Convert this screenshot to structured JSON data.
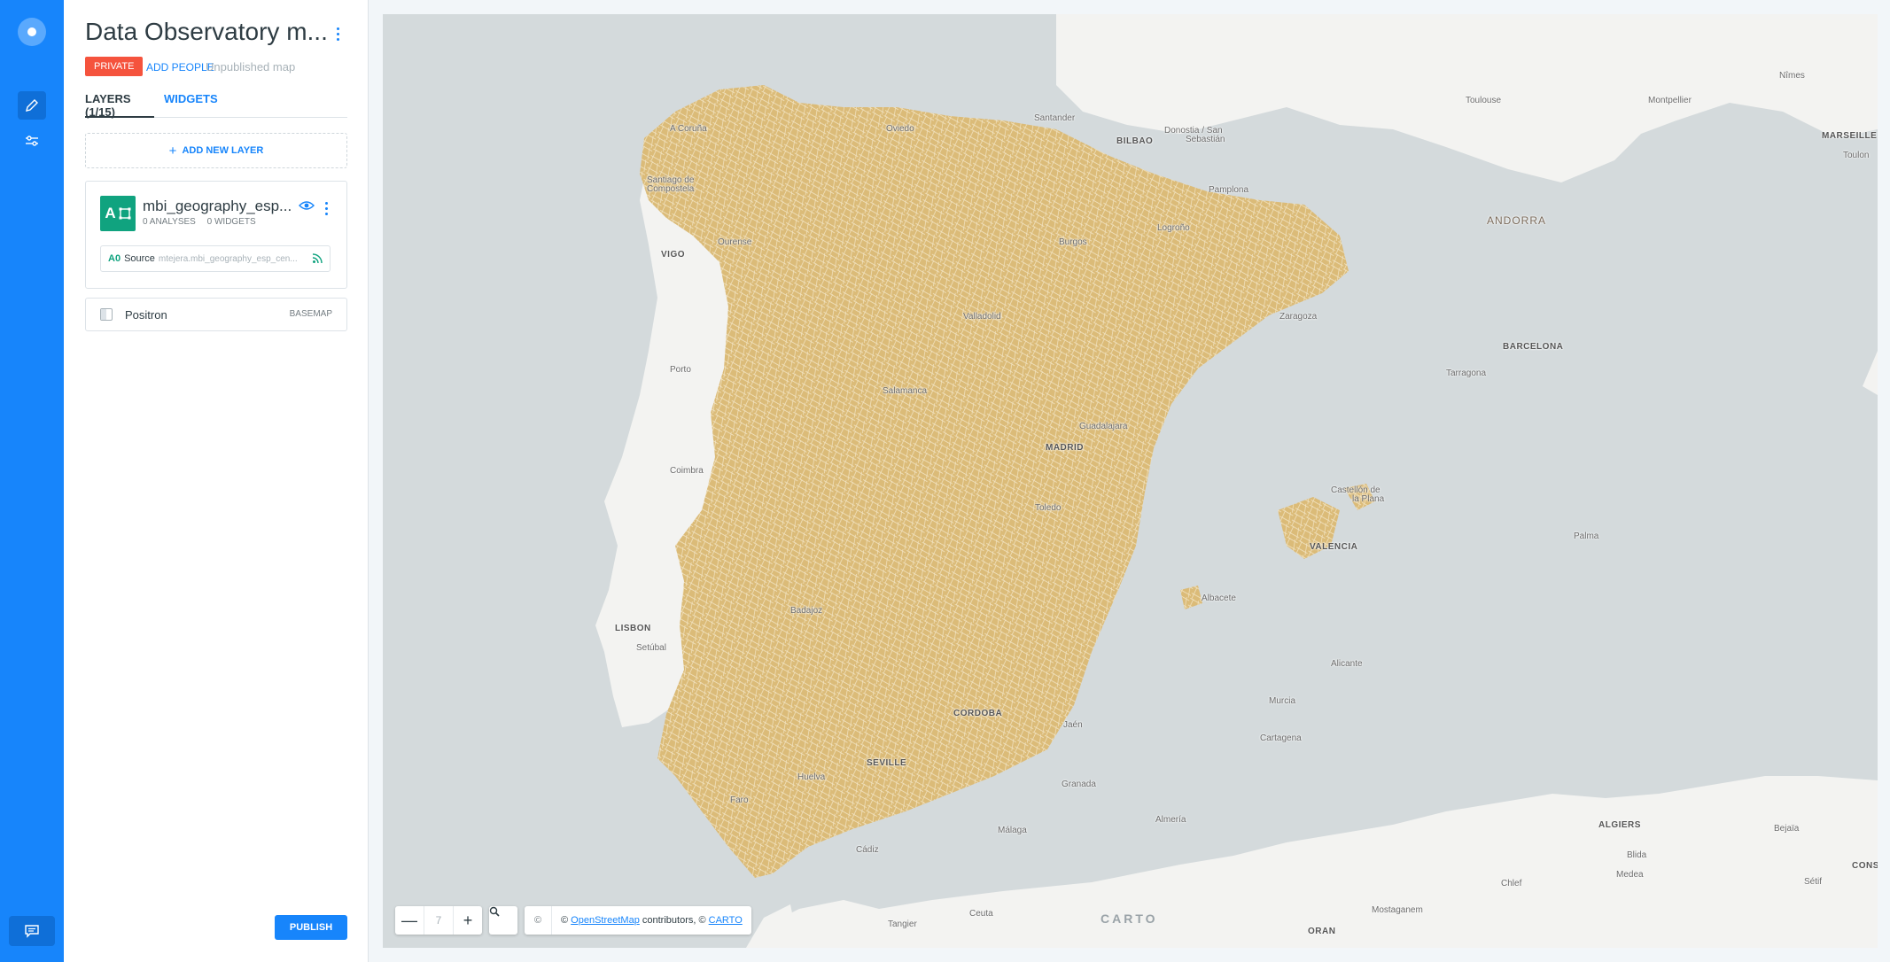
{
  "nav": {
    "items": [
      {
        "icon": "pencil-icon",
        "active": true
      },
      {
        "icon": "sliders-icon",
        "active": false
      }
    ],
    "footer_icon": "chat-icon"
  },
  "header": {
    "title": "Data Observatory m...",
    "privacy_badge": "PRIVATE",
    "add_people": "ADD PEOPLE",
    "status": "Unpublished map"
  },
  "tabs": [
    {
      "label": "LAYERS (1/15)",
      "active": true
    },
    {
      "label": "WIDGETS",
      "active": false
    }
  ],
  "add_layer": {
    "label": "ADD NEW LAYER"
  },
  "layer": {
    "letter": "A",
    "name": "mbi_geography_esp...",
    "analyses": "0 ANALYSES",
    "widgets": "0 WIDGETS",
    "source_node": "A0",
    "source_label": "Source",
    "source_table": "mtejera.mbi_geography_esp_cen...",
    "fill_color": "#dbbb78"
  },
  "basemap": {
    "name": "Positron",
    "tag": "BASEMAP"
  },
  "publish": {
    "label": "PUBLISH"
  },
  "map": {
    "zoom_out": "—",
    "zoom_level": "7",
    "zoom_in": "+",
    "search_icon": "search-icon",
    "attribution_mark": "©",
    "attribution_prefix": "©",
    "attribution_osm": "OpenStreetMap",
    "attribution_mid": "contributors, ©",
    "attribution_carto": "CARTO",
    "watermark": "CARTO",
    "labels": [
      {
        "t": "Toulouse"
      },
      {
        "t": "Montpellier"
      },
      {
        "t": "Nîmes"
      },
      {
        "t": "MARSEILLE",
        "cls": "cap"
      },
      {
        "t": "Toulon"
      },
      {
        "t": "A Coruña"
      },
      {
        "t": "Oviedo"
      },
      {
        "t": "Santander"
      },
      {
        "t": "Donostia / San"
      },
      {
        "t": "Sebastián"
      },
      {
        "t": "BILBAO",
        "cls": "cap"
      },
      {
        "t": "Santiago de"
      },
      {
        "t": "Compostela"
      },
      {
        "t": "Pamplona"
      },
      {
        "t": "ANDORRA",
        "cls": "big"
      },
      {
        "t": "Ourense"
      },
      {
        "t": "Logroño"
      },
      {
        "t": "Burgos"
      },
      {
        "t": "VIGO",
        "cls": "cap"
      },
      {
        "t": "Valladolid"
      },
      {
        "t": "Zaragoza"
      },
      {
        "t": "BARCELONA",
        "cls": "cap"
      },
      {
        "t": "Porto"
      },
      {
        "t": "Tarragona"
      },
      {
        "t": "Salamanca"
      },
      {
        "t": "Guadalajara"
      },
      {
        "t": "MADRID",
        "cls": "cap"
      },
      {
        "t": "Coimbra"
      },
      {
        "t": "Castellón de"
      },
      {
        "t": "la Plana"
      },
      {
        "t": "Toledo"
      },
      {
        "t": "Palma"
      },
      {
        "t": "VALENCIA",
        "cls": "cap"
      },
      {
        "t": "Albacete"
      },
      {
        "t": "Badajoz"
      },
      {
        "t": "LISBON",
        "cls": "cap"
      },
      {
        "t": "Setúbal"
      },
      {
        "t": "Alicante"
      },
      {
        "t": "Murcia"
      },
      {
        "t": "CORDOBA",
        "cls": "cap"
      },
      {
        "t": "Jaén"
      },
      {
        "t": "Cartagena"
      },
      {
        "t": "SEVILLE",
        "cls": "cap"
      },
      {
        "t": "Huelva"
      },
      {
        "t": "Granada"
      },
      {
        "t": "Faro"
      },
      {
        "t": "Almería"
      },
      {
        "t": "Málaga"
      },
      {
        "t": "ALGIERS",
        "cls": "cap"
      },
      {
        "t": "Bejaïa"
      },
      {
        "t": "Cádiz"
      },
      {
        "t": "Blida"
      },
      {
        "t": "Medea"
      },
      {
        "t": "Chlef"
      },
      {
        "t": "Sétif"
      },
      {
        "t": "CONS",
        "cls": "cap"
      },
      {
        "t": "Mostaganem"
      },
      {
        "t": "Tangier"
      },
      {
        "t": "Ceuta"
      },
      {
        "t": "ORAN",
        "cls": "cap"
      }
    ]
  }
}
